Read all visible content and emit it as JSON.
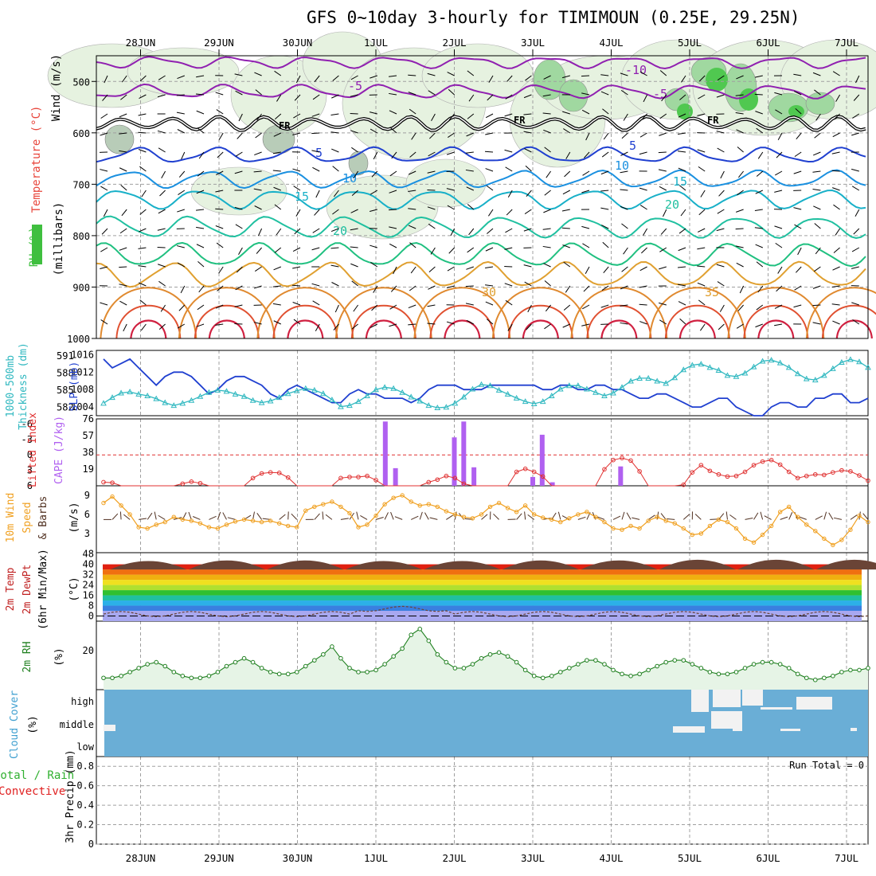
{
  "title": "GFS 0~10day 3-hourly for TIMIMOUN (0.25E, 29.25N)",
  "dates": [
    "28JUN",
    "29JUN",
    "30JUN",
    "1JUL",
    "2JUL",
    "3JUL",
    "4JUL",
    "5JUL",
    "6JUL",
    "7JUL"
  ],
  "colors": {
    "temp_label": "#e8463c",
    "wind_label": "#7b22a6",
    "rh_fill": "#3fbf3f",
    "slp": "#2040d0",
    "thickness": "#30b8c0",
    "lifted": "#e03030",
    "cape": "#b060f0",
    "wind10": "#f0a020",
    "t2m_label": "#c02020",
    "rh2m": "#208020",
    "cloud_bg": "#6aaed6",
    "cloud_label": "#40a0d0",
    "precip_total": "#30b030",
    "precip_conv": "#e02020"
  },
  "labels": {
    "upper": {
      "wind": "Wind (m/s)",
      "temp": "Temperature (°C)",
      "rh": "RH (%)",
      "units": "(millibars)"
    },
    "slp": {
      "thk": "1000-500mb",
      "thk2": "Thickness (dm)",
      "slp": "SLP (mb)"
    },
    "cape": {
      "li": "Lifted Index",
      "cape": "CAPE (J/kg)"
    },
    "wind": {
      "a": "10m Wind",
      "b": "Speed",
      "c": "& Barbs",
      "units": "(m/s)"
    },
    "temp": {
      "a": "2m Temp",
      "b": "2m DewPt",
      "c": "(6hr Min/Max)",
      "units": "(°C)"
    },
    "rh": {
      "a": "2m RH",
      "units": "(%)"
    },
    "cloud": {
      "a": "Cloud Cover",
      "units": "(%)"
    },
    "precip": {
      "a": "Total / Rain",
      "b": "Convective",
      "c": "3hr Precip (mm)"
    },
    "run_total": "Run Total = 0",
    "contours": {
      "fr": "FR",
      "t_neg10": "-10",
      "t_neg5": "-5",
      "t5": "5",
      "t10": "10",
      "t15": "15",
      "t20": "20",
      "t30": "30",
      "t35": "35"
    }
  },
  "chart_data": [
    {
      "type": "heatmap",
      "panel": "upper-air",
      "yaxis": {
        "label": "millibars",
        "ticks": [
          "500",
          "600",
          "700",
          "800",
          "900",
          "1000"
        ],
        "range": [
          1000,
          450
        ],
        "reversed": true
      },
      "isotherms_C": [
        -10,
        -5,
        0,
        5,
        10,
        15,
        20,
        30,
        35
      ],
      "freezing_level_label": "FR"
    },
    {
      "type": "line",
      "panel": "slp-thickness",
      "yaxis_left": {
        "label": "1000-500mb Thickness (dm)",
        "ticks": [
          "582",
          "585",
          "588",
          "591"
        ]
      },
      "yaxis_right": {
        "label": "SLP (mb)",
        "ticks": [
          "1004",
          "1008",
          "1012",
          "1016"
        ]
      },
      "series": [
        {
          "name": "SLP (mb)",
          "values": [
            1015,
            1013,
            1014,
            1015,
            1013,
            1011,
            1009,
            1011,
            1012,
            1012,
            1011,
            1009,
            1007,
            1008,
            1010,
            1011,
            1011,
            1010,
            1009,
            1007,
            1006,
            1008,
            1009,
            1008,
            1007,
            1006,
            1005,
            1005,
            1007,
            1008,
            1007,
            1007,
            1006,
            1006,
            1006,
            1005,
            1006,
            1008,
            1009,
            1009,
            1009,
            1008,
            1008,
            1008,
            1009,
            1009,
            1009,
            1009,
            1009,
            1009,
            1008,
            1008,
            1009,
            1009,
            1008,
            1008,
            1009,
            1009,
            1008,
            1008,
            1007,
            1006,
            1006,
            1007,
            1007,
            1006,
            1005,
            1004,
            1004,
            1005,
            1006,
            1006,
            1004,
            1003,
            1002,
            1002,
            1004,
            1005,
            1005,
            1004,
            1004,
            1006,
            1006,
            1007,
            1007,
            1005,
            1005,
            1006
          ]
        },
        {
          "name": "Thickness (dm)",
          "values": [
            582.7,
            583.7,
            584.5,
            584.7,
            584.3,
            584.0,
            583.5,
            582.8,
            582.3,
            582.7,
            583.2,
            583.9,
            584.6,
            585.0,
            584.8,
            584.3,
            583.9,
            583.2,
            582.8,
            583.1,
            583.7,
            584.4,
            584.9,
            585.3,
            585.0,
            584.4,
            583.3,
            582.1,
            582.3,
            583.0,
            584.0,
            585.1,
            585.5,
            585.3,
            584.6,
            583.8,
            583.1,
            582.3,
            581.9,
            582.0,
            582.7,
            583.8,
            585.2,
            586.0,
            585.8,
            585.0,
            584.3,
            583.6,
            583.0,
            582.6,
            583.0,
            584.0,
            585.2,
            585.8,
            585.8,
            585.2,
            584.6,
            584.0,
            584.5,
            585.5,
            586.6,
            587.1,
            587.1,
            586.6,
            586.2,
            587.2,
            588.6,
            589.4,
            589.6,
            589.0,
            588.5,
            587.6,
            587.4,
            588.0,
            589.1,
            590.1,
            590.3,
            589.8,
            589.0,
            587.9,
            587.0,
            586.8,
            587.6,
            588.8,
            589.9,
            590.4,
            590.0,
            589.0
          ]
        }
      ]
    },
    {
      "type": "bar",
      "panel": "cape-lifted-index",
      "yaxis_left": {
        "label": "Lifted Index",
        "ticks": [
          "-6",
          "-3",
          "0",
          "3",
          "6"
        ]
      },
      "yaxis_right": {
        "label": "CAPE (J/kg)",
        "ticks": [
          "19",
          "38",
          "57",
          "76"
        ]
      },
      "cape_bars": [
        {
          "t": 3.62,
          "value": 73
        },
        {
          "t": 3.75,
          "value": 20
        },
        {
          "t": 4.5,
          "value": 55
        },
        {
          "t": 4.62,
          "value": 73
        },
        {
          "t": 4.75,
          "value": 21
        },
        {
          "t": 5.5,
          "value": 10
        },
        {
          "t": 5.62,
          "value": 58
        },
        {
          "t": 5.75,
          "value": 4
        },
        {
          "t": 6.62,
          "value": 22
        }
      ],
      "lifted_index": [
        5.3,
        5.4,
        6,
        6,
        6,
        6,
        6,
        6,
        6,
        5.6,
        5.2,
        5.5,
        6,
        6,
        6,
        6,
        6,
        4.5,
        3.6,
        3.4,
        3.5,
        4.4,
        6,
        6,
        6,
        6,
        6,
        4.5,
        4.3,
        4.3,
        4.1,
        4.9,
        6,
        6,
        6,
        6,
        6,
        5.3,
        4.8,
        4.1,
        4.5,
        5.6,
        6,
        6,
        6,
        6,
        6,
        3.3,
        2.7,
        3.3,
        4.2,
        6,
        6,
        6,
        6,
        6,
        6,
        2.8,
        1.0,
        0.6,
        1.1,
        3.2,
        6,
        6,
        6,
        6,
        5.8,
        3.4,
        2.0,
        3.1,
        3.8,
        4.2,
        4.1,
        3.3,
        2.0,
        1.3,
        1.0,
        1.9,
        3.3,
        4.5,
        4.1,
        3.8,
        3.9,
        3.4,
        3.0,
        3.2,
        4.0,
        5.0
      ]
    },
    {
      "type": "line",
      "panel": "10m-wind",
      "yaxis": {
        "label": "Speed (m/s)",
        "ticks": [
          "3",
          "6",
          "9"
        ]
      },
      "series": [
        {
          "name": "Speed",
          "values": [
            7.8,
            8.8,
            7.4,
            6.0,
            4.0,
            3.8,
            4.4,
            4.8,
            5.6,
            5.2,
            5.0,
            4.6,
            4.0,
            3.8,
            4.4,
            4.9,
            5.2,
            5.0,
            4.8,
            5.0,
            4.6,
            4.2,
            4.0,
            6.6,
            7.2,
            7.6,
            8.0,
            7.2,
            6.2,
            4.0,
            4.4,
            5.8,
            7.6,
            8.6,
            9.0,
            8.0,
            7.4,
            7.6,
            7.2,
            6.5,
            6.0,
            5.6,
            5.4,
            6.0,
            7.2,
            7.8,
            7.0,
            6.4,
            7.4,
            6.0,
            5.5,
            5.2,
            4.8,
            5.4,
            6.0,
            6.4,
            5.6,
            4.8,
            3.8,
            3.6,
            4.2,
            3.8,
            5.0,
            5.6,
            5.0,
            4.6,
            3.8,
            2.8,
            3.0,
            4.2,
            5.2,
            4.8,
            3.8,
            2.2,
            1.6,
            2.8,
            4.2,
            6.4,
            7.2,
            5.6,
            4.4,
            3.4,
            2.2,
            1.2,
            2.0,
            3.6,
            5.8,
            4.8
          ]
        }
      ]
    },
    {
      "type": "area",
      "panel": "2m-temp",
      "yaxis": {
        "label": "(°C)",
        "ticks": [
          "0",
          "8",
          "16",
          "24",
          "32",
          "40",
          "48"
        ]
      },
      "temp_max_by_day": [
        41,
        42,
        42,
        41,
        41,
        42,
        42,
        43,
        43,
        43
      ],
      "temp_min_by_day": [
        31,
        32,
        32,
        31,
        31,
        31,
        32,
        33,
        34,
        34
      ],
      "dewpoint_approx": [
        1,
        3,
        4,
        6,
        8,
        3,
        3,
        4,
        3,
        2
      ]
    },
    {
      "type": "line",
      "panel": "2m-rh",
      "yaxis": {
        "label": "(%)",
        "ticks": [
          "20"
        ]
      },
      "series": [
        {
          "name": "2m RH",
          "values": [
            6,
            6,
            7,
            9,
            11,
            13,
            14,
            12,
            9,
            7,
            6,
            6,
            7,
            9,
            12,
            14,
            16,
            14,
            11,
            9,
            8,
            8,
            9,
            12,
            15,
            18,
            22,
            16,
            11,
            9,
            9,
            10,
            13,
            17,
            21,
            28,
            31,
            25,
            18,
            14,
            11,
            11,
            13,
            16,
            18,
            19,
            17,
            14,
            10,
            7,
            6,
            7,
            9,
            11,
            13,
            15,
            15,
            13,
            10,
            8,
            7,
            8,
            10,
            12,
            14,
            15,
            15,
            13,
            11,
            9,
            8,
            8,
            9,
            11,
            13,
            14,
            14,
            13,
            11,
            8,
            6,
            5,
            6,
            7,
            9,
            10,
            10,
            11
          ]
        }
      ]
    },
    {
      "type": "heatmap",
      "panel": "cloud-cover",
      "yaxis": {
        "label": "(%)",
        "ticks": [
          "low",
          "middle",
          "high"
        ]
      },
      "note": "mostly clear, high cloud 5JUL-6JUL"
    },
    {
      "type": "bar",
      "panel": "3hr-precip",
      "yaxis": {
        "label": "3hr Precip (mm)",
        "ticks": [
          "0",
          "0.2",
          "0.4",
          "0.6",
          "0.8"
        ],
        "range": [
          0,
          0.9
        ]
      },
      "values": [],
      "run_total": "Run Total = 0"
    }
  ]
}
